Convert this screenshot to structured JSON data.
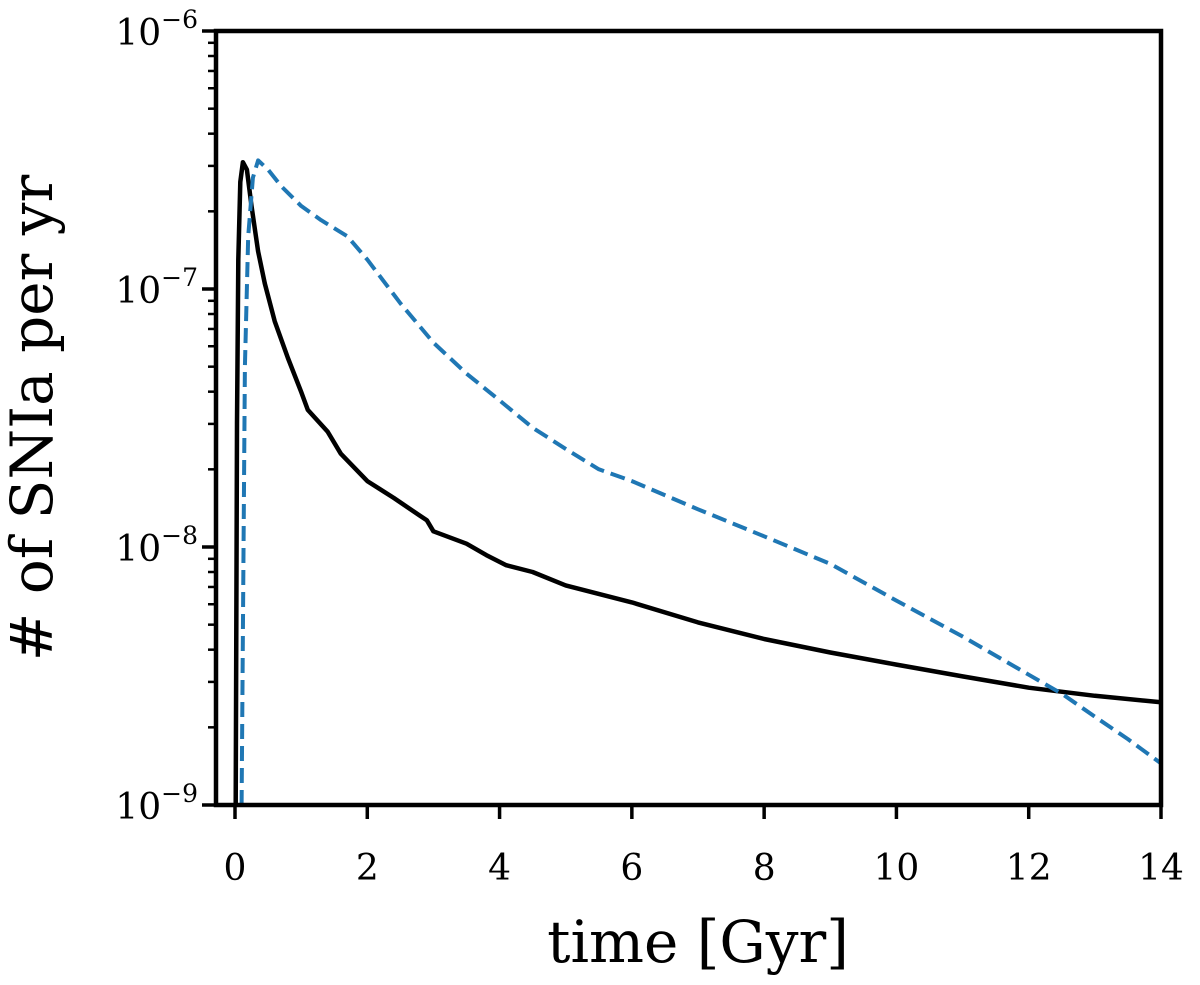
{
  "chart_data": {
    "type": "line",
    "title": "",
    "xlabel": "time [Gyr]",
    "ylabel": "# of SNIa per yr",
    "xlim": [
      0,
      14
    ],
    "ylim": [
      1e-09,
      1e-06
    ],
    "yscale": "log",
    "grid": false,
    "legend": "none",
    "x_ticks": [
      {
        "value": 0,
        "label": "0"
      },
      {
        "value": 2,
        "label": "2"
      },
      {
        "value": 4,
        "label": "4"
      },
      {
        "value": 6,
        "label": "6"
      },
      {
        "value": 8,
        "label": "8"
      },
      {
        "value": 10,
        "label": "10"
      },
      {
        "value": 12,
        "label": "12"
      },
      {
        "value": 14,
        "label": "14"
      }
    ],
    "y_ticks": [
      {
        "value": 1e-09,
        "base": "10",
        "exp": "−9"
      },
      {
        "value": 1e-08,
        "base": "10",
        "exp": "−8"
      },
      {
        "value": 1e-07,
        "base": "10",
        "exp": "−7"
      },
      {
        "value": 1e-06,
        "base": "10",
        "exp": "−6"
      }
    ],
    "series": [
      {
        "color": "#000000",
        "style": "solid",
        "points": [
          [
            0.01,
            1e-09
          ],
          [
            0.03,
            3e-08
          ],
          [
            0.05,
            1.3e-07
          ],
          [
            0.08,
            2.6e-07
          ],
          [
            0.12,
            3.1e-07
          ],
          [
            0.18,
            2.9e-07
          ],
          [
            0.25,
            2.1e-07
          ],
          [
            0.35,
            1.4e-07
          ],
          [
            0.45,
            1.05e-07
          ],
          [
            0.6,
            7.5e-08
          ],
          [
            0.8,
            5.4e-08
          ],
          [
            1.0,
            4e-08
          ],
          [
            1.1,
            3.4e-08
          ],
          [
            1.4,
            2.8e-08
          ],
          [
            1.6,
            2.3e-08
          ],
          [
            2.0,
            1.8e-08
          ],
          [
            2.4,
            1.55e-08
          ],
          [
            2.8,
            1.32e-08
          ],
          [
            2.9,
            1.27e-08
          ],
          [
            3.0,
            1.15e-08
          ],
          [
            3.5,
            1.03e-08
          ],
          [
            3.8,
            9.3e-09
          ],
          [
            4.1,
            8.5e-09
          ],
          [
            4.5,
            8e-09
          ],
          [
            5.0,
            7.1e-09
          ],
          [
            6.0,
            6.1e-09
          ],
          [
            7.0,
            5.1e-09
          ],
          [
            8.0,
            4.4e-09
          ],
          [
            9.0,
            3.9e-09
          ],
          [
            10.0,
            3.5e-09
          ],
          [
            11.0,
            3.15e-09
          ],
          [
            12.0,
            2.85e-09
          ],
          [
            13.0,
            2.65e-09
          ],
          [
            14.0,
            2.5e-09
          ]
        ]
      },
      {
        "color": "#1f77b4",
        "style": "dashed",
        "points": [
          [
            0.1,
            1e-09
          ],
          [
            0.15,
            5e-08
          ],
          [
            0.2,
            1.6e-07
          ],
          [
            0.27,
            2.7e-07
          ],
          [
            0.35,
            3.15e-07
          ],
          [
            0.5,
            2.9e-07
          ],
          [
            0.7,
            2.5e-07
          ],
          [
            1.0,
            2.1e-07
          ],
          [
            1.3,
            1.85e-07
          ],
          [
            1.7,
            1.6e-07
          ],
          [
            2.0,
            1.3e-07
          ],
          [
            2.5,
            8.8e-08
          ],
          [
            3.0,
            6.2e-08
          ],
          [
            3.5,
            4.7e-08
          ],
          [
            4.0,
            3.7e-08
          ],
          [
            4.5,
            2.9e-08
          ],
          [
            5.0,
            2.4e-08
          ],
          [
            5.5,
            2e-08
          ],
          [
            6.0,
            1.8e-08
          ],
          [
            7.0,
            1.4e-08
          ],
          [
            8.0,
            1.1e-08
          ],
          [
            9.0,
            8.6e-09
          ],
          [
            10.0,
            6.2e-09
          ],
          [
            11.0,
            4.5e-09
          ],
          [
            12.0,
            3.2e-09
          ],
          [
            12.5,
            2.7e-09
          ],
          [
            13.0,
            2.2e-09
          ],
          [
            13.5,
            1.8e-09
          ],
          [
            14.0,
            1.45e-09
          ]
        ]
      }
    ]
  }
}
